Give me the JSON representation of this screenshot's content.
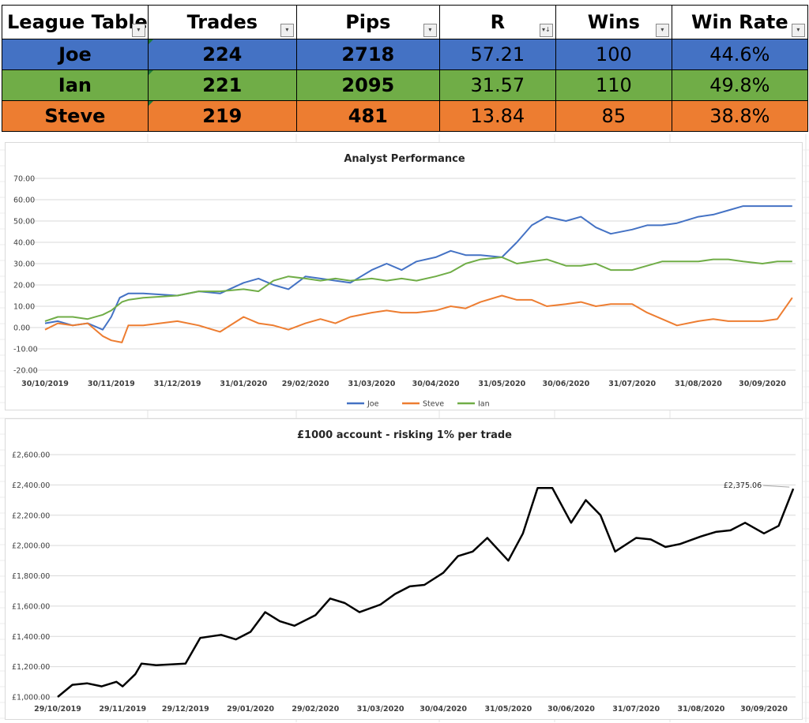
{
  "league_table": {
    "headers": [
      "League Table",
      "Trades",
      "Pips",
      "R",
      "Wins",
      "Win Rate"
    ],
    "filter_icons": [
      "▾",
      "▾",
      "▾",
      "▾↓",
      "▾",
      "▾"
    ],
    "rows": [
      {
        "name": "Joe",
        "trades": "224",
        "pips": "2718",
        "r": "57.21",
        "wins": "100",
        "win_rate": "44.6%",
        "color": "#4472C4"
      },
      {
        "name": "Ian",
        "trades": "221",
        "pips": "2095",
        "r": "31.57",
        "wins": "110",
        "win_rate": "49.8%",
        "color": "#70AD47"
      },
      {
        "name": "Steve",
        "trades": "219",
        "pips": "481",
        "r": "13.84",
        "wins": "85",
        "win_rate": "38.8%",
        "color": "#ED7D31"
      }
    ]
  },
  "chart_data": [
    {
      "type": "line",
      "title": "Analyst Performance",
      "xlabel": "",
      "ylabel": "",
      "ylim": [
        -20,
        70
      ],
      "yticks": [
        "70.00",
        "60.00",
        "50.00",
        "40.00",
        "30.00",
        "20.00",
        "10.00",
        "0.00",
        "-10.00",
        "-20.00"
      ],
      "xticks": [
        "30/10/2019",
        "30/11/2019",
        "31/12/2019",
        "31/01/2020",
        "29/02/2020",
        "31/03/2020",
        "30/04/2020",
        "31/05/2020",
        "30/06/2020",
        "31/07/2020",
        "31/08/2020",
        "30/09/2020"
      ],
      "grid": true,
      "legend": "bottom",
      "series": [
        {
          "name": "Joe",
          "color": "#4472C4",
          "points": [
            [
              "30/10/2019",
              2
            ],
            [
              "05/11/2019",
              3
            ],
            [
              "12/11/2019",
              1
            ],
            [
              "19/11/2019",
              2
            ],
            [
              "26/11/2019",
              -1
            ],
            [
              "30/11/2019",
              5
            ],
            [
              "04/12/2019",
              14
            ],
            [
              "08/12/2019",
              16
            ],
            [
              "15/12/2019",
              16
            ],
            [
              "31/12/2019",
              15
            ],
            [
              "10/01/2020",
              17
            ],
            [
              "20/01/2020",
              16
            ],
            [
              "31/01/2020",
              21
            ],
            [
              "07/02/2020",
              23
            ],
            [
              "14/02/2020",
              20
            ],
            [
              "21/02/2020",
              18
            ],
            [
              "29/02/2020",
              24
            ],
            [
              "07/03/2020",
              23
            ],
            [
              "14/03/2020",
              22
            ],
            [
              "21/03/2020",
              21
            ],
            [
              "31/03/2020",
              27
            ],
            [
              "07/04/2020",
              30
            ],
            [
              "14/04/2020",
              27
            ],
            [
              "21/04/2020",
              31
            ],
            [
              "30/04/2020",
              33
            ],
            [
              "07/05/2020",
              36
            ],
            [
              "14/05/2020",
              34
            ],
            [
              "21/05/2020",
              34
            ],
            [
              "31/05/2020",
              33
            ],
            [
              "07/06/2020",
              40
            ],
            [
              "14/06/2020",
              48
            ],
            [
              "21/06/2020",
              52
            ],
            [
              "30/06/2020",
              50
            ],
            [
              "07/07/2020",
              52
            ],
            [
              "14/07/2020",
              47
            ],
            [
              "21/07/2020",
              44
            ],
            [
              "31/07/2020",
              46
            ],
            [
              "07/08/2020",
              48
            ],
            [
              "14/08/2020",
              48
            ],
            [
              "21/08/2020",
              49
            ],
            [
              "31/08/2020",
              52
            ],
            [
              "07/09/2020",
              53
            ],
            [
              "14/09/2020",
              55
            ],
            [
              "21/09/2020",
              57
            ],
            [
              "30/09/2020",
              57
            ],
            [
              "07/10/2020",
              57
            ],
            [
              "14/10/2020",
              57
            ]
          ]
        },
        {
          "name": "Steve",
          "color": "#ED7D31",
          "points": [
            [
              "30/10/2019",
              -1
            ],
            [
              "05/11/2019",
              2
            ],
            [
              "12/11/2019",
              1
            ],
            [
              "19/11/2019",
              2
            ],
            [
              "26/11/2019",
              -4
            ],
            [
              "30/11/2019",
              -6
            ],
            [
              "05/12/2019",
              -7
            ],
            [
              "08/12/2019",
              1
            ],
            [
              "15/12/2019",
              1
            ],
            [
              "31/12/2019",
              3
            ],
            [
              "10/01/2020",
              1
            ],
            [
              "20/01/2020",
              -2
            ],
            [
              "31/01/2020",
              5
            ],
            [
              "07/02/2020",
              2
            ],
            [
              "14/02/2020",
              1
            ],
            [
              "21/02/2020",
              -1
            ],
            [
              "29/02/2020",
              2
            ],
            [
              "07/03/2020",
              4
            ],
            [
              "14/03/2020",
              2
            ],
            [
              "21/03/2020",
              5
            ],
            [
              "31/03/2020",
              7
            ],
            [
              "07/04/2020",
              8
            ],
            [
              "14/04/2020",
              7
            ],
            [
              "21/04/2020",
              7
            ],
            [
              "30/04/2020",
              8
            ],
            [
              "07/05/2020",
              10
            ],
            [
              "14/05/2020",
              9
            ],
            [
              "21/05/2020",
              12
            ],
            [
              "31/05/2020",
              15
            ],
            [
              "07/06/2020",
              13
            ],
            [
              "14/06/2020",
              13
            ],
            [
              "21/06/2020",
              10
            ],
            [
              "30/06/2020",
              11
            ],
            [
              "07/07/2020",
              12
            ],
            [
              "14/07/2020",
              10
            ],
            [
              "21/07/2020",
              11
            ],
            [
              "31/07/2020",
              11
            ],
            [
              "07/08/2020",
              7
            ],
            [
              "14/08/2020",
              4
            ],
            [
              "21/08/2020",
              1
            ],
            [
              "31/08/2020",
              3
            ],
            [
              "07/09/2020",
              4
            ],
            [
              "14/09/2020",
              3
            ],
            [
              "21/09/2020",
              3
            ],
            [
              "30/09/2020",
              3
            ],
            [
              "07/10/2020",
              4
            ],
            [
              "14/10/2020",
              14
            ]
          ]
        },
        {
          "name": "Ian",
          "color": "#70AD47",
          "points": [
            [
              "30/10/2019",
              3
            ],
            [
              "05/11/2019",
              5
            ],
            [
              "12/11/2019",
              5
            ],
            [
              "19/11/2019",
              4
            ],
            [
              "26/11/2019",
              6
            ],
            [
              "30/11/2019",
              8
            ],
            [
              "05/12/2019",
              12
            ],
            [
              "08/12/2019",
              13
            ],
            [
              "15/12/2019",
              14
            ],
            [
              "31/12/2019",
              15
            ],
            [
              "10/01/2020",
              17
            ],
            [
              "20/01/2020",
              17
            ],
            [
              "31/01/2020",
              18
            ],
            [
              "07/02/2020",
              17
            ],
            [
              "14/02/2020",
              22
            ],
            [
              "21/02/2020",
              24
            ],
            [
              "29/02/2020",
              23
            ],
            [
              "07/03/2020",
              22
            ],
            [
              "14/03/2020",
              23
            ],
            [
              "21/03/2020",
              22
            ],
            [
              "31/03/2020",
              23
            ],
            [
              "07/04/2020",
              22
            ],
            [
              "14/04/2020",
              23
            ],
            [
              "21/04/2020",
              22
            ],
            [
              "30/04/2020",
              24
            ],
            [
              "07/05/2020",
              26
            ],
            [
              "14/05/2020",
              30
            ],
            [
              "21/05/2020",
              32
            ],
            [
              "31/05/2020",
              33
            ],
            [
              "07/06/2020",
              30
            ],
            [
              "14/06/2020",
              31
            ],
            [
              "21/06/2020",
              32
            ],
            [
              "30/06/2020",
              29
            ],
            [
              "07/07/2020",
              29
            ],
            [
              "14/07/2020",
              30
            ],
            [
              "21/07/2020",
              27
            ],
            [
              "31/07/2020",
              27
            ],
            [
              "07/08/2020",
              29
            ],
            [
              "14/08/2020",
              31
            ],
            [
              "21/08/2020",
              31
            ],
            [
              "31/08/2020",
              31
            ],
            [
              "07/09/2020",
              32
            ],
            [
              "14/09/2020",
              32
            ],
            [
              "21/09/2020",
              31
            ],
            [
              "30/09/2020",
              30
            ],
            [
              "07/10/2020",
              31
            ],
            [
              "14/10/2020",
              31
            ]
          ]
        }
      ]
    },
    {
      "type": "line",
      "title": "£1000 account - risking 1% per trade",
      "xlabel": "",
      "ylabel": "",
      "ylim": [
        1000,
        2600
      ],
      "yticks": [
        "£2,600.00",
        "£2,400.00",
        "£2,200.00",
        "£2,000.00",
        "£1,800.00",
        "£1,600.00",
        "£1,400.00",
        "£1,200.00",
        "£1,000.00"
      ],
      "xticks": [
        "29/10/2019",
        "29/11/2019",
        "29/12/2019",
        "29/01/2020",
        "29/02/2020",
        "31/03/2020",
        "30/04/2020",
        "31/05/2020",
        "30/06/2020",
        "31/07/2020",
        "31/08/2020",
        "30/09/2020"
      ],
      "grid": true,
      "annotation": "£2,375.06",
      "series": [
        {
          "name": "",
          "color": "#000000",
          "points": [
            [
              "29/10/2019",
              1000
            ],
            [
              "05/11/2019",
              1080
            ],
            [
              "12/11/2019",
              1090
            ],
            [
              "19/11/2019",
              1070
            ],
            [
              "26/11/2019",
              1100
            ],
            [
              "29/11/2019",
              1070
            ],
            [
              "05/12/2019",
              1150
            ],
            [
              "08/12/2019",
              1220
            ],
            [
              "15/12/2019",
              1210
            ],
            [
              "29/12/2019",
              1220
            ],
            [
              "05/01/2020",
              1390
            ],
            [
              "15/01/2020",
              1410
            ],
            [
              "22/01/2020",
              1380
            ],
            [
              "29/01/2020",
              1430
            ],
            [
              "05/02/2020",
              1560
            ],
            [
              "12/02/2020",
              1500
            ],
            [
              "19/02/2020",
              1470
            ],
            [
              "29/02/2020",
              1540
            ],
            [
              "07/03/2020",
              1650
            ],
            [
              "14/03/2020",
              1620
            ],
            [
              "21/03/2020",
              1560
            ],
            [
              "31/03/2020",
              1610
            ],
            [
              "07/04/2020",
              1680
            ],
            [
              "14/04/2020",
              1730
            ],
            [
              "21/04/2020",
              1740
            ],
            [
              "30/04/2020",
              1820
            ],
            [
              "07/05/2020",
              1930
            ],
            [
              "14/05/2020",
              1960
            ],
            [
              "21/05/2020",
              2050
            ],
            [
              "31/05/2020",
              1900
            ],
            [
              "07/06/2020",
              2080
            ],
            [
              "14/06/2020",
              2380
            ],
            [
              "21/06/2020",
              2380
            ],
            [
              "30/06/2020",
              2150
            ],
            [
              "07/07/2020",
              2300
            ],
            [
              "14/07/2020",
              2200
            ],
            [
              "21/07/2020",
              1960
            ],
            [
              "31/07/2020",
              2050
            ],
            [
              "07/08/2020",
              2040
            ],
            [
              "14/08/2020",
              1990
            ],
            [
              "21/08/2020",
              2010
            ],
            [
              "31/08/2020",
              2060
            ],
            [
              "07/09/2020",
              2090
            ],
            [
              "14/09/2020",
              2100
            ],
            [
              "21/09/2020",
              2150
            ],
            [
              "30/09/2020",
              2080
            ],
            [
              "07/10/2020",
              2130
            ],
            [
              "14/10/2020",
              2375
            ]
          ]
        }
      ]
    }
  ]
}
